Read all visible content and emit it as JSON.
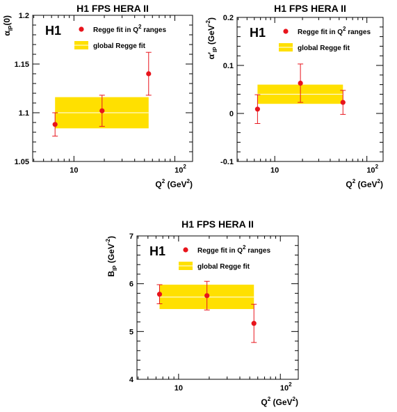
{
  "chart_data": [
    {
      "type": "scatter",
      "title": "H1 FPS HERA II",
      "experiment_label": "H1",
      "ylabel_main": "α",
      "ylabel_sub": "IP",
      "ylabel_rest": "(0)",
      "xlabel_main": "Q",
      "xlabel_rest": " (GeV",
      "x_scale": "log",
      "xlim": [
        3.9,
        150
      ],
      "ylim": [
        1.05,
        1.2
      ],
      "x_major_ticks": [
        {
          "v": 10,
          "label": "10"
        },
        {
          "v": 100,
          "label": "10",
          "sup": "2"
        }
      ],
      "y_ticks": [
        {
          "v": 1.05,
          "label": "1.05"
        },
        {
          "v": 1.1,
          "label": "1.1"
        },
        {
          "v": 1.15,
          "label": "1.15"
        },
        {
          "v": 1.2,
          "label": "1.2"
        }
      ],
      "legend": {
        "points": "Regge fit in Q",
        "points_sup": "2",
        "points_rest": " ranges",
        "band": "global Regge fit"
      },
      "series": [
        {
          "name": "Regge fit in Q² ranges",
          "points": [
            {
              "x": 6.5,
              "y": 1.088,
              "err": 0.012
            },
            {
              "x": 19,
              "y": 1.102,
              "err": 0.016
            },
            {
              "x": 55,
              "y": 1.14,
              "err": 0.022
            }
          ]
        }
      ],
      "band": {
        "x": [
          6.5,
          55
        ],
        "center": 1.1,
        "low": 1.084,
        "high": 1.116
      },
      "colors": {
        "points": "#e8141c",
        "band": "#ffe000",
        "band_line": "#ffffff"
      }
    },
    {
      "type": "scatter",
      "title": "H1 FPS HERA II",
      "experiment_label": "H1",
      "ylabel_main": "α′",
      "ylabel_sub": "IP",
      "ylabel_rest": " (GeV",
      "ylabel_sup": "-2",
      "xlabel_main": "Q",
      "xlabel_rest": " (GeV",
      "x_scale": "log",
      "xlim": [
        3.9,
        150
      ],
      "ylim": [
        -0.1,
        0.2
      ],
      "x_major_ticks": [
        {
          "v": 10,
          "label": "10"
        },
        {
          "v": 100,
          "label": "10",
          "sup": "2"
        }
      ],
      "y_ticks": [
        {
          "v": -0.1,
          "label": "-0.1"
        },
        {
          "v": 0,
          "label": "0"
        },
        {
          "v": 0.1,
          "label": "0.1"
        },
        {
          "v": 0.2,
          "label": "0.2"
        }
      ],
      "legend": {
        "points": "Regge fit in Q",
        "points_sup": "2",
        "points_rest": " ranges",
        "band": "global Regge fit"
      },
      "series": [
        {
          "name": "Regge fit in Q² ranges",
          "points": [
            {
              "x": 6.5,
              "y": 0.009,
              "err": 0.03
            },
            {
              "x": 19,
              "y": 0.063,
              "err": 0.04
            },
            {
              "x": 55,
              "y": 0.023,
              "err": 0.025
            }
          ]
        }
      ],
      "band": {
        "x": [
          6.5,
          55
        ],
        "center": 0.04,
        "low": 0.02,
        "high": 0.06
      },
      "colors": {
        "points": "#e8141c",
        "band": "#ffe000",
        "band_line": "#ffffff"
      }
    },
    {
      "type": "scatter",
      "title": "H1 FPS HERA II",
      "experiment_label": "H1",
      "ylabel_main": "B",
      "ylabel_sub": "IP",
      "ylabel_rest": " (GeV",
      "ylabel_sup": "-2",
      "xlabel_main": "Q",
      "xlabel_rest": " (GeV",
      "x_scale": "log",
      "xlim": [
        3.9,
        150
      ],
      "ylim": [
        4,
        7
      ],
      "x_major_ticks": [
        {
          "v": 10,
          "label": "10"
        },
        {
          "v": 100,
          "label": "10",
          "sup": "2"
        }
      ],
      "y_ticks": [
        {
          "v": 4,
          "label": "4"
        },
        {
          "v": 5,
          "label": "5"
        },
        {
          "v": 6,
          "label": "6"
        },
        {
          "v": 7,
          "label": "7"
        }
      ],
      "legend": {
        "points": "Regge fit in Q",
        "points_sup": "2",
        "points_rest": " ranges",
        "band": "global Regge fit"
      },
      "series": [
        {
          "name": "Regge fit in Q² ranges",
          "points": [
            {
              "x": 6.5,
              "y": 5.78,
              "err": 0.2
            },
            {
              "x": 19,
              "y": 5.75,
              "err": 0.3
            },
            {
              "x": 55,
              "y": 5.17,
              "err": 0.4
            }
          ]
        }
      ],
      "band": {
        "x": [
          6.5,
          55
        ],
        "center": 5.72,
        "low": 5.47,
        "high": 5.98
      },
      "colors": {
        "points": "#e8141c",
        "band": "#ffe000",
        "band_line": "#ffffff"
      }
    }
  ]
}
